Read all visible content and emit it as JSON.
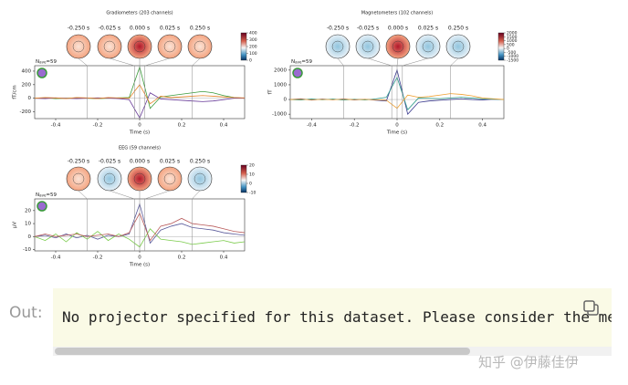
{
  "chart_data": [
    {
      "type": "line",
      "title": "Gradiometers (203 channels)",
      "xlabel": "Time (s)",
      "ylabel": "fT/cm",
      "nave": {
        "n": "N",
        "sub": "ave",
        "rest": "=59"
      },
      "x": [
        -0.5,
        -0.45,
        -0.4,
        -0.35,
        -0.3,
        -0.25,
        -0.2,
        -0.15,
        -0.1,
        -0.05,
        0,
        0.05,
        0.1,
        0.15,
        0.2,
        0.25,
        0.3,
        0.35,
        0.4,
        0.45,
        0.5
      ],
      "series": [
        {
          "color": "#3a9a3a",
          "values": [
            0,
            5,
            -5,
            0,
            5,
            0,
            -5,
            0,
            5,
            10,
            460,
            -150,
            20,
            40,
            60,
            80,
            100,
            80,
            40,
            10,
            0
          ]
        },
        {
          "color": "#6a3d9a",
          "values": [
            0,
            -5,
            5,
            0,
            -5,
            0,
            5,
            0,
            -5,
            -20,
            -290,
            80,
            -10,
            -20,
            -30,
            -40,
            -50,
            -40,
            -20,
            0,
            0
          ]
        },
        {
          "color": "#e6862a",
          "values": [
            0,
            10,
            5,
            -5,
            10,
            5,
            -5,
            10,
            5,
            0,
            200,
            -80,
            30,
            10,
            20,
            30,
            40,
            30,
            20,
            10,
            5
          ]
        }
      ],
      "xlim": [
        -0.5,
        0.5
      ],
      "xticks": [
        -0.4,
        -0.2,
        0.0,
        0.2,
        0.4
      ],
      "ylim": [
        -300,
        480
      ],
      "yticks": [
        400,
        200,
        0,
        -200
      ],
      "topomap_times": [
        {
          "value": -0.25,
          "label": "-0.250 s"
        },
        {
          "value": -0.025,
          "label": "-0.025 s"
        },
        {
          "value": 0,
          "label": "0.000 s"
        },
        {
          "value": 0.025,
          "label": "0.025 s"
        },
        {
          "value": 0.25,
          "label": "0.250 s"
        }
      ],
      "colorbar_ticks": [
        400,
        300,
        200,
        100,
        0
      ]
    },
    {
      "type": "line",
      "title": "Magnetometers (102 channels)",
      "xlabel": "Time (s)",
      "ylabel": "fT",
      "nave": {
        "n": "N",
        "sub": "ave",
        "rest": "=59"
      },
      "x": [
        -0.5,
        -0.45,
        -0.4,
        -0.35,
        -0.3,
        -0.25,
        -0.2,
        -0.15,
        -0.1,
        -0.05,
        0,
        0.05,
        0.1,
        0.15,
        0.2,
        0.25,
        0.3,
        0.35,
        0.4,
        0.45,
        0.5
      ],
      "series": [
        {
          "color": "#3b3b8f",
          "values": [
            0,
            50,
            -40,
            30,
            -20,
            40,
            -30,
            20,
            -50,
            -100,
            2000,
            -1000,
            -200,
            -100,
            -50,
            0,
            50,
            0,
            -30,
            20,
            0
          ]
        },
        {
          "color": "#2e9b8a",
          "values": [
            0,
            -30,
            40,
            -20,
            30,
            -40,
            20,
            -30,
            40,
            150,
            1500,
            -700,
            100,
            80,
            60,
            100,
            150,
            100,
            50,
            20,
            0
          ]
        },
        {
          "color": "#f0a030",
          "values": [
            0,
            20,
            -20,
            10,
            -10,
            20,
            -10,
            10,
            -20,
            -50,
            -600,
            300,
            150,
            200,
            300,
            400,
            350,
            250,
            100,
            50,
            0
          ]
        }
      ],
      "xlim": [
        -0.5,
        0.5
      ],
      "xticks": [
        -0.4,
        -0.2,
        0.0,
        0.2,
        0.4
      ],
      "ylim": [
        -1300,
        2300
      ],
      "yticks": [
        2000,
        1000,
        0,
        -1000
      ],
      "topomap_times": [
        {
          "value": -0.25,
          "label": "-0.250 s"
        },
        {
          "value": -0.025,
          "label": "-0.025 s"
        },
        {
          "value": 0,
          "label": "0.000 s"
        },
        {
          "value": 0.025,
          "label": "0.025 s"
        },
        {
          "value": 0.25,
          "label": "0.250 s"
        }
      ],
      "colorbar_ticks": [
        2000,
        1500,
        1000,
        500,
        0,
        -500,
        -1000,
        -1500
      ]
    },
    {
      "type": "line",
      "title": "EEG (59 channels)",
      "xlabel": "Time (s)",
      "ylabel": "µV",
      "nave": {
        "n": "N",
        "sub": "ave",
        "rest": "=59"
      },
      "x": [
        -0.5,
        -0.45,
        -0.4,
        -0.35,
        -0.3,
        -0.25,
        -0.2,
        -0.15,
        -0.1,
        -0.05,
        0,
        0.05,
        0.1,
        0.15,
        0.2,
        0.25,
        0.3,
        0.35,
        0.4,
        0.45,
        0.5
      ],
      "series": [
        {
          "color": "#5a5a9a",
          "values": [
            0,
            1,
            -1,
            2,
            -1,
            1,
            -2,
            1,
            0,
            2,
            25,
            -5,
            5,
            8,
            10,
            7,
            6,
            5,
            3,
            2,
            1
          ]
        },
        {
          "color": "#7acb4a",
          "values": [
            0,
            -3,
            2,
            -4,
            3,
            -2,
            4,
            -3,
            2,
            -2,
            -8,
            6,
            -2,
            -3,
            -4,
            -6,
            -5,
            -4,
            -3,
            -5,
            -4
          ]
        },
        {
          "color": "#b85a5a",
          "values": [
            0,
            2,
            0,
            1,
            2,
            0,
            1,
            2,
            0,
            3,
            18,
            -3,
            8,
            10,
            14,
            10,
            9,
            8,
            6,
            4,
            3
          ]
        }
      ],
      "xlim": [
        -0.5,
        0.5
      ],
      "xticks": [
        -0.4,
        -0.2,
        0.0,
        0.2,
        0.4
      ],
      "ylim": [
        -11,
        29
      ],
      "yticks": [
        20,
        10,
        0,
        -10
      ],
      "topomap_times": [
        {
          "value": -0.25,
          "label": "-0.250 s"
        },
        {
          "value": -0.025,
          "label": "-0.025 s"
        },
        {
          "value": 0,
          "label": "0.000 s"
        },
        {
          "value": 0.025,
          "label": "0.025 s"
        },
        {
          "value": 0.25,
          "label": "0.250 s"
        }
      ],
      "colorbar_ticks": [
        20,
        10,
        0,
        -10
      ]
    }
  ],
  "output": {
    "label": "Out:",
    "text": "No projector specified for this dataset. Please consider the me",
    "watermark": "知乎 @伊藤佳伊"
  }
}
